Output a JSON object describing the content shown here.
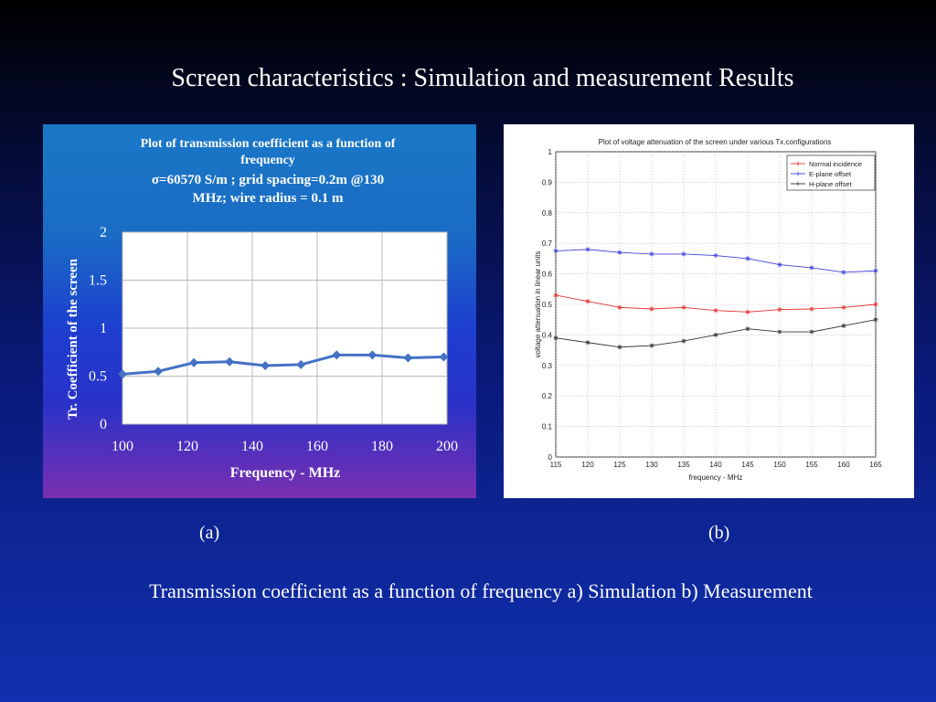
{
  "slide": {
    "title": "Screen characteristics : Simulation and measurement Results",
    "caption_a": "(a)",
    "caption_b": "(b)",
    "caption_main": "Transmission coefficient as a function of frequency  a) Simulation  b) Measurement"
  },
  "colors": {
    "series_a": "#4472c4",
    "normal_incidence": "#e03030",
    "e_plane": "#4040d8",
    "h_plane": "#333333"
  },
  "chart_data": [
    {
      "type": "line",
      "title_lines": [
        "Plot of transmission coefficient as a function of",
        "frequency"
      ],
      "subtitle_lines": [
        "σ=60570 S/m ; grid spacing=0.2m @130",
        "MHz; wire radius = 0.1 m"
      ],
      "xlabel": "Frequency - MHz",
      "ylabel": "Tr. Coefficient  of the screen",
      "xlim": [
        100,
        200
      ],
      "ylim": [
        0,
        2
      ],
      "xticks": [
        "100",
        "120",
        "140",
        "160",
        "180",
        "200"
      ],
      "yticks": [
        "0",
        "0.5",
        "1",
        "1.5",
        "2"
      ],
      "grid": true,
      "series": [
        {
          "x": [
            100,
            111,
            122,
            133,
            144,
            155,
            166,
            177,
            188,
            199
          ],
          "values": [
            0.52,
            0.55,
            0.64,
            0.65,
            0.61,
            0.62,
            0.72,
            0.72,
            0.69,
            0.7
          ]
        }
      ]
    },
    {
      "type": "line",
      "title": "Plot of voltage attenuation of the screen under various Tx.configurations",
      "xlabel": "frequency - MHz",
      "ylabel": "voltage attenuation in linear units",
      "xlim": [
        115,
        165
      ],
      "ylim": [
        0,
        1
      ],
      "xticks": [
        "115",
        "120",
        "125",
        "130",
        "135",
        "140",
        "145",
        "150",
        "155",
        "160",
        "165"
      ],
      "yticks": [
        "0",
        "0.1",
        "0.2",
        "0.3",
        "0.4",
        "0.5",
        "0.6",
        "0.7",
        "0.8",
        "0.9",
        "1"
      ],
      "grid": true,
      "legend_position": "top-right",
      "x": [
        115,
        120,
        125,
        130,
        135,
        140,
        145,
        150,
        155,
        160,
        165
      ],
      "series": [
        {
          "name": "Normal incidence",
          "values": [
            0.53,
            0.51,
            0.49,
            0.485,
            0.49,
            0.48,
            0.475,
            0.483,
            0.485,
            0.49,
            0.5
          ]
        },
        {
          "name": "E-plane offset",
          "values": [
            0.675,
            0.68,
            0.67,
            0.665,
            0.665,
            0.66,
            0.65,
            0.63,
            0.62,
            0.605,
            0.61
          ]
        },
        {
          "name": "H-plane offset",
          "values": [
            0.39,
            0.375,
            0.36,
            0.365,
            0.38,
            0.4,
            0.42,
            0.41,
            0.41,
            0.43,
            0.45
          ]
        }
      ]
    }
  ]
}
